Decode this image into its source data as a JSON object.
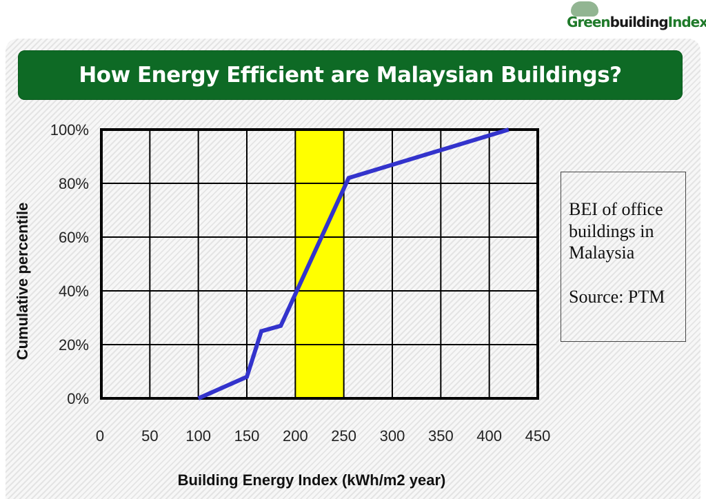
{
  "logo": {
    "prefix": "Green",
    "middle": "building",
    "suffix": "Index"
  },
  "title": "How Energy Efficient are Malaysian Buildings?",
  "note": {
    "lines": [
      "BEI of office",
      "buildings in",
      "Malaysia"
    ],
    "source": "Source: PTM"
  },
  "colors": {
    "title_bg": "#0e6a25",
    "line": "#3333cc",
    "highlight_band": "#ffff00",
    "grid": "#000000"
  },
  "chart_data": {
    "type": "line",
    "title": "How Energy Efficient are Malaysian Buildings?",
    "xlabel": "Building Energy Index (kWh/m2 year)",
    "ylabel": "Cumulative percentile",
    "xlim": [
      0,
      450
    ],
    "ylim": [
      0,
      100
    ],
    "x_ticks": [
      0,
      50,
      100,
      150,
      200,
      250,
      300,
      350,
      400,
      450
    ],
    "y_ticks": [
      0,
      20,
      40,
      60,
      80,
      100
    ],
    "y_tick_labels": [
      "0%",
      "20%",
      "40%",
      "60%",
      "80%",
      "100%"
    ],
    "grid": true,
    "legend": null,
    "highlight_band": {
      "x_from": 200,
      "x_to": 250,
      "color": "#ffff00"
    },
    "series": [
      {
        "name": "BEI of office buildings in Malaysia",
        "x": [
          100,
          150,
          165,
          185,
          255,
          420
        ],
        "y": [
          0,
          8,
          25,
          27,
          82,
          100
        ]
      }
    ],
    "annotation": "BEI of office buildings in Malaysia. Source: PTM"
  }
}
